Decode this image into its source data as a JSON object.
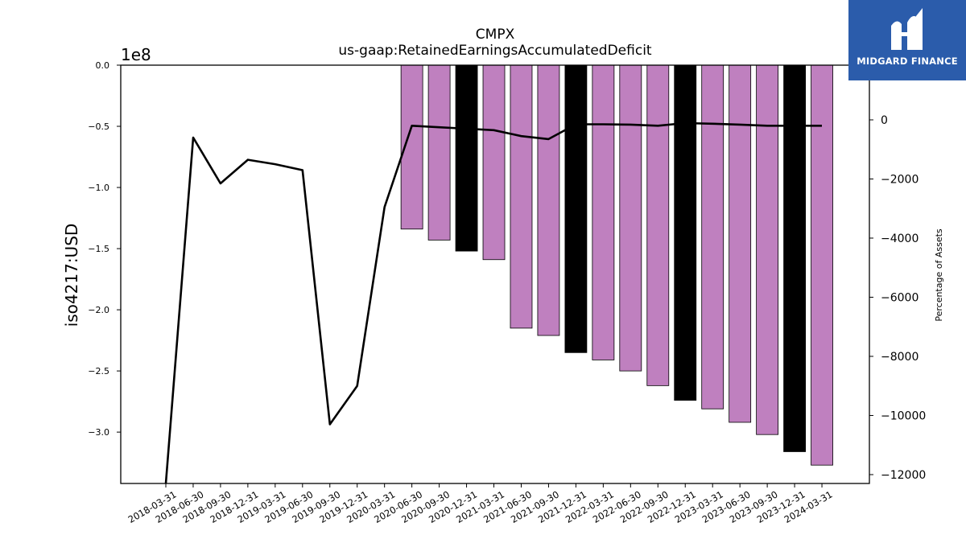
{
  "chart_data": {
    "type": "bar",
    "title": "CMPX",
    "subtitle": "us-gaap:RetainedEarningsAccumulatedDeficit",
    "ylabel": "iso4217:USD",
    "y_offset_label": "1e8",
    "y2label": "Percentage of Assets",
    "ylim": [
      -3.42,
      0.0
    ],
    "y2lim": [
      -12300,
      1850
    ],
    "yticks": [
      "0.0",
      "-0.5",
      "-1.0",
      "-1.5",
      "-2.0",
      "-2.5",
      "-3.0"
    ],
    "yticks_values": [
      0.0,
      -0.5,
      -1.0,
      -1.5,
      -2.0,
      -2.5,
      -3.0
    ],
    "y2ticks": [
      "0",
      "−2000",
      "−4000",
      "−6000",
      "−8000",
      "−10000",
      "−12000"
    ],
    "y2ticks_values": [
      0,
      -2000,
      -4000,
      -6000,
      -8000,
      -10000,
      -12000
    ],
    "categories": [
      "2018-03-31",
      "2018-06-30",
      "2018-09-30",
      "2018-12-31",
      "2019-03-31",
      "2019-06-30",
      "2019-09-30",
      "2019-12-31",
      "2020-03-31",
      "2020-06-30",
      "2020-09-30",
      "2020-12-31",
      "2021-03-31",
      "2021-06-30",
      "2021-09-30",
      "2021-12-31",
      "2022-03-31",
      "2022-06-30",
      "2022-09-30",
      "2022-12-31",
      "2023-03-31",
      "2023-06-30",
      "2023-09-30",
      "2023-12-31",
      "2024-03-31"
    ],
    "series": [
      {
        "name": "RetainedEarningsAccumulatedDeficit",
        "kind": "bar",
        "values": [
          null,
          null,
          null,
          null,
          null,
          null,
          null,
          null,
          null,
          -1.34,
          -1.43,
          -1.52,
          -1.59,
          -2.15,
          -2.21,
          -2.35,
          -2.41,
          -2.5,
          -2.62,
          -2.74,
          -2.81,
          -2.92,
          -3.02,
          -3.16,
          -3.27
        ],
        "colors": [
          "#bf80bf",
          "#bf80bf",
          "#000000",
          "#bf80bf",
          "#bf80bf",
          "#bf80bf",
          "#000000",
          "#bf80bf",
          "#bf80bf",
          "#bf80bf",
          "#000000",
          "#bf80bf",
          "#bf80bf",
          "#bf80bf",
          "#000000",
          "#bf80bf"
        ]
      },
      {
        "name": "Percentage of Assets",
        "kind": "line",
        "axis": "right",
        "values": [
          -12600,
          -600,
          -2150,
          -1350,
          -1500,
          -1700,
          -10300,
          -9000,
          -2950,
          -200,
          -250,
          -300,
          -350,
          -550,
          -650,
          -150,
          -150,
          -160,
          -200,
          -110,
          -130,
          -160,
          -200,
          -200,
          -200
        ]
      }
    ],
    "grid": false,
    "colors": {
      "bar": "#bf80bf",
      "bar_highlight": "#000000",
      "line": "#000000"
    }
  },
  "logo": {
    "text": "MIDGARD FINANCE",
    "color": "#2b5cab"
  }
}
